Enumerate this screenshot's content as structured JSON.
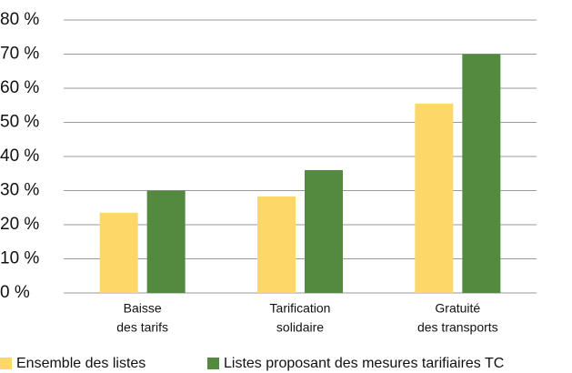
{
  "chart_data": {
    "type": "bar",
    "categories": [
      [
        "Baisse",
        "des tarifs"
      ],
      [
        "Tarification",
        "solidaire"
      ],
      [
        "Gratuité",
        "des transports"
      ]
    ],
    "series": [
      {
        "name": "Ensemble des listes",
        "color": "#fdd868",
        "values": [
          23.5,
          28.3,
          55.5
        ]
      },
      {
        "name": "Listes proposant des mesures tarifiaires TC",
        "color": "#538a3f",
        "values": [
          30,
          36,
          70
        ]
      }
    ],
    "ylim": [
      0,
      80
    ],
    "yticks": [
      {
        "value": 0,
        "label": "0 %"
      },
      {
        "value": 10,
        "label": "10 %"
      },
      {
        "value": 20,
        "label": "20 %"
      },
      {
        "value": 30,
        "label": "30 %"
      },
      {
        "value": 40,
        "label": "40 %"
      },
      {
        "value": 50,
        "label": "50 %"
      },
      {
        "value": 60,
        "label": "60 %"
      },
      {
        "value": 70,
        "label": "70 %"
      },
      {
        "value": 80,
        "label": "80 %"
      }
    ],
    "grid": true
  }
}
